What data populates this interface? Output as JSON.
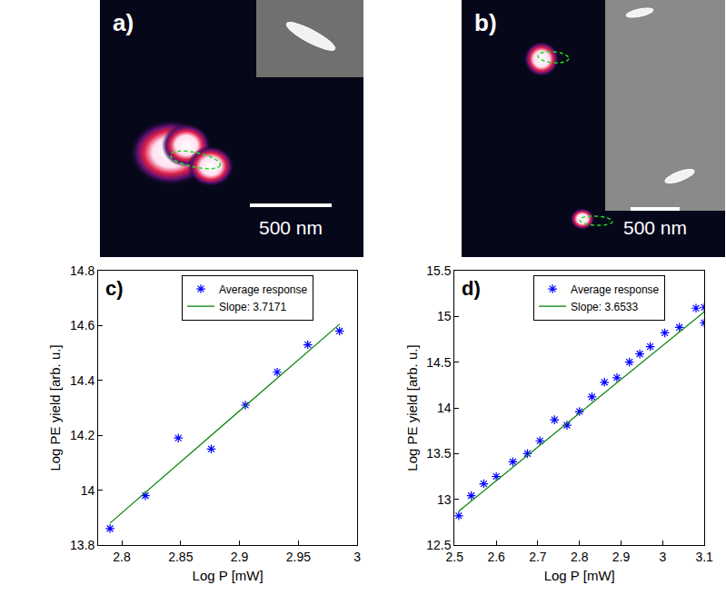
{
  "images": [
    {
      "label": "a)",
      "scale_bar": "500 nm"
    },
    {
      "label": "b)",
      "scale_bar": "500 nm"
    }
  ],
  "chart_data": [
    {
      "type": "scatter",
      "label": "c)",
      "x_label": "Log P [mW]",
      "y_label": "Log PE yield [arb. u.]",
      "series": [
        {
          "name": "Average response",
          "type": "scatter",
          "marker": "asterisk",
          "color": "#0000ff",
          "x": [
            2.79,
            2.82,
            2.848,
            2.876,
            2.905,
            2.932,
            2.958,
            2.985
          ],
          "values": [
            13.86,
            13.98,
            14.19,
            14.15,
            14.31,
            14.43,
            14.53,
            14.58
          ]
        },
        {
          "name": "Slope: 3.7171",
          "type": "line",
          "line_style": "solid",
          "color": "#008000",
          "x": [
            2.79,
            2.985
          ],
          "values": [
            13.88,
            14.605
          ]
        }
      ],
      "xlim": [
        2.78,
        3.0
      ],
      "xticks": [
        2.8,
        2.85,
        2.9,
        2.95,
        3
      ],
      "ylim": [
        13.8,
        14.8
      ],
      "yticks": [
        13.8,
        14,
        14.2,
        14.4,
        14.6,
        14.8
      ],
      "grid": false,
      "legend": "upper center"
    },
    {
      "type": "scatter",
      "label": "d)",
      "x_label": "Log P [mW]",
      "y_label": "Log PE yield [arb. u.]",
      "series": [
        {
          "name": "Average response",
          "type": "scatter",
          "marker": "asterisk",
          "color": "#0000ff",
          "x": [
            2.51,
            2.54,
            2.57,
            2.6,
            2.64,
            2.675,
            2.705,
            2.74,
            2.77,
            2.8,
            2.83,
            2.86,
            2.89,
            2.92,
            2.945,
            2.97,
            3.005,
            3.04,
            3.08,
            3.1,
            3.1
          ],
          "values": [
            12.82,
            13.04,
            13.17,
            13.25,
            13.41,
            13.5,
            13.64,
            13.87,
            13.81,
            13.96,
            14.12,
            14.28,
            14.33,
            14.5,
            14.59,
            14.67,
            14.82,
            14.88,
            15.09,
            15.1,
            14.93
          ]
        },
        {
          "name": "Slope: 3.6533",
          "type": "line",
          "line_style": "solid",
          "color": "#008000",
          "x": [
            2.51,
            3.1
          ],
          "values": [
            12.87,
            15.05
          ]
        }
      ],
      "xlim": [
        2.5,
        3.1
      ],
      "xticks": [
        2.5,
        2.6,
        2.7,
        2.8,
        2.9,
        3,
        3.1
      ],
      "ylim": [
        12.5,
        15.5
      ],
      "yticks": [
        12.5,
        13,
        13.5,
        14,
        14.5,
        15,
        15.5
      ],
      "grid": false,
      "legend": "upper center"
    }
  ]
}
